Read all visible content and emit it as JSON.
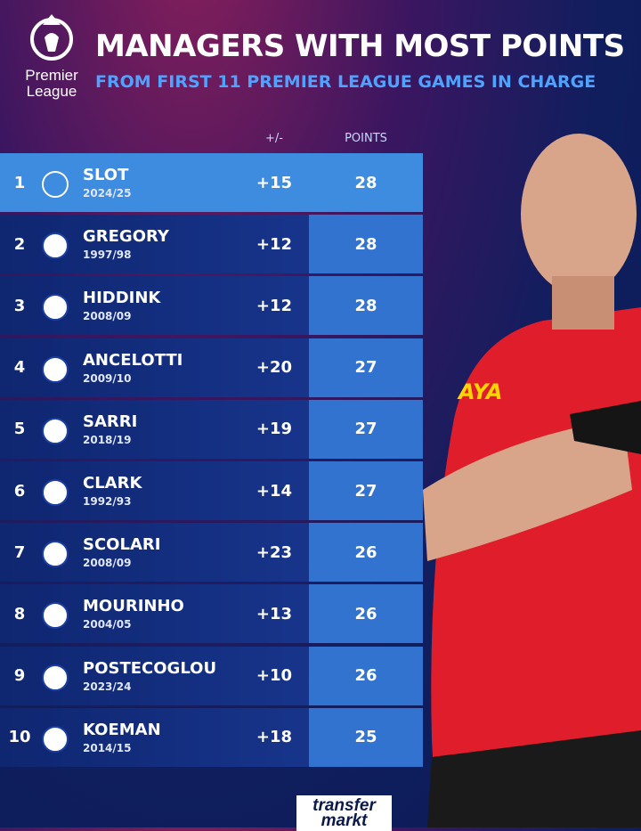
{
  "header": {
    "logo": [
      "Premier",
      "League"
    ],
    "title": "MANAGERS WITH MOST POINTS",
    "subtitle": "FROM FIRST 11 PREMIER LEAGUE GAMES IN CHARGE"
  },
  "table": {
    "columns": [
      "+/-",
      "POINTS"
    ],
    "rows": [
      {
        "rank": 1,
        "name": "SLOT",
        "season": "2024/25",
        "diff": "+15",
        "points": 28
      },
      {
        "rank": 2,
        "name": "GREGORY",
        "season": "1997/98",
        "diff": "+12",
        "points": 28
      },
      {
        "rank": 3,
        "name": "HIDDINK",
        "season": "2008/09",
        "diff": "+12",
        "points": 28
      },
      {
        "rank": 4,
        "name": "ANCELOTTI",
        "season": "2009/10",
        "diff": "+20",
        "points": 27
      },
      {
        "rank": 5,
        "name": "SARRI",
        "season": "2018/19",
        "diff": "+19",
        "points": 27
      },
      {
        "rank": 6,
        "name": "CLARK",
        "season": "1992/93",
        "diff": "+14",
        "points": 27
      },
      {
        "rank": 7,
        "name": "SCOLARI",
        "season": "2008/09",
        "diff": "+23",
        "points": 26
      },
      {
        "rank": 8,
        "name": "MOURINHO",
        "season": "2004/05",
        "diff": "+13",
        "points": 26
      },
      {
        "rank": 9,
        "name": "POSTECOGLOU",
        "season": "2023/24",
        "diff": "+10",
        "points": 26
      },
      {
        "rank": 10,
        "name": "KOEMAN",
        "season": "2014/15",
        "diff": "+18",
        "points": 25
      }
    ]
  },
  "footer": {
    "logo": [
      "transfer",
      "markt"
    ]
  }
}
